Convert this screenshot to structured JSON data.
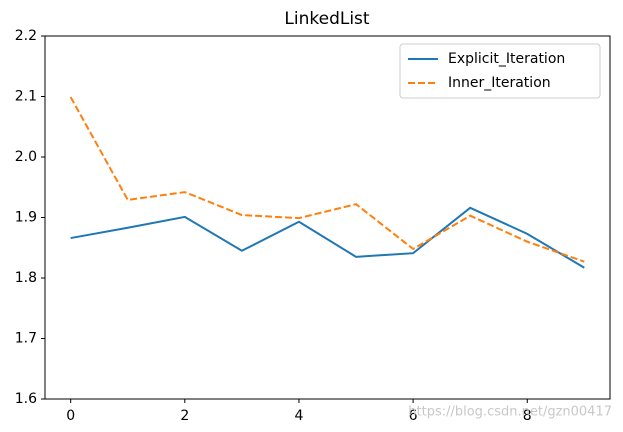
{
  "chart_data": {
    "type": "line",
    "title": "LinkedList",
    "x": [
      0,
      1,
      2,
      3,
      4,
      5,
      6,
      7,
      8,
      9
    ],
    "series": [
      {
        "name": "Explicit_Iteration",
        "color": "#1f77b4",
        "linestyle": "solid",
        "values": [
          1.866,
          1.883,
          1.901,
          1.845,
          1.893,
          1.835,
          1.841,
          1.916,
          1.873,
          1.817
        ]
      },
      {
        "name": "Inner_Iteration",
        "color": "#ff7f0e",
        "linestyle": "dashed",
        "values": [
          2.099,
          1.929,
          1.942,
          1.904,
          1.899,
          1.922,
          1.848,
          1.903,
          1.86,
          1.827
        ]
      }
    ],
    "xlim": [
      -0.45,
      9.45
    ],
    "xticks": [
      0,
      2,
      4,
      6,
      8
    ],
    "ylim": [
      1.6,
      2.2
    ],
    "yticks": [
      1.6,
      1.7,
      1.8,
      1.9,
      {
        "value": 2,
        "label": "2.0"
      },
      2.1,
      2.2
    ],
    "legend": "upper right",
    "watermark": "https://blog.csdn.net/gzn00417"
  }
}
